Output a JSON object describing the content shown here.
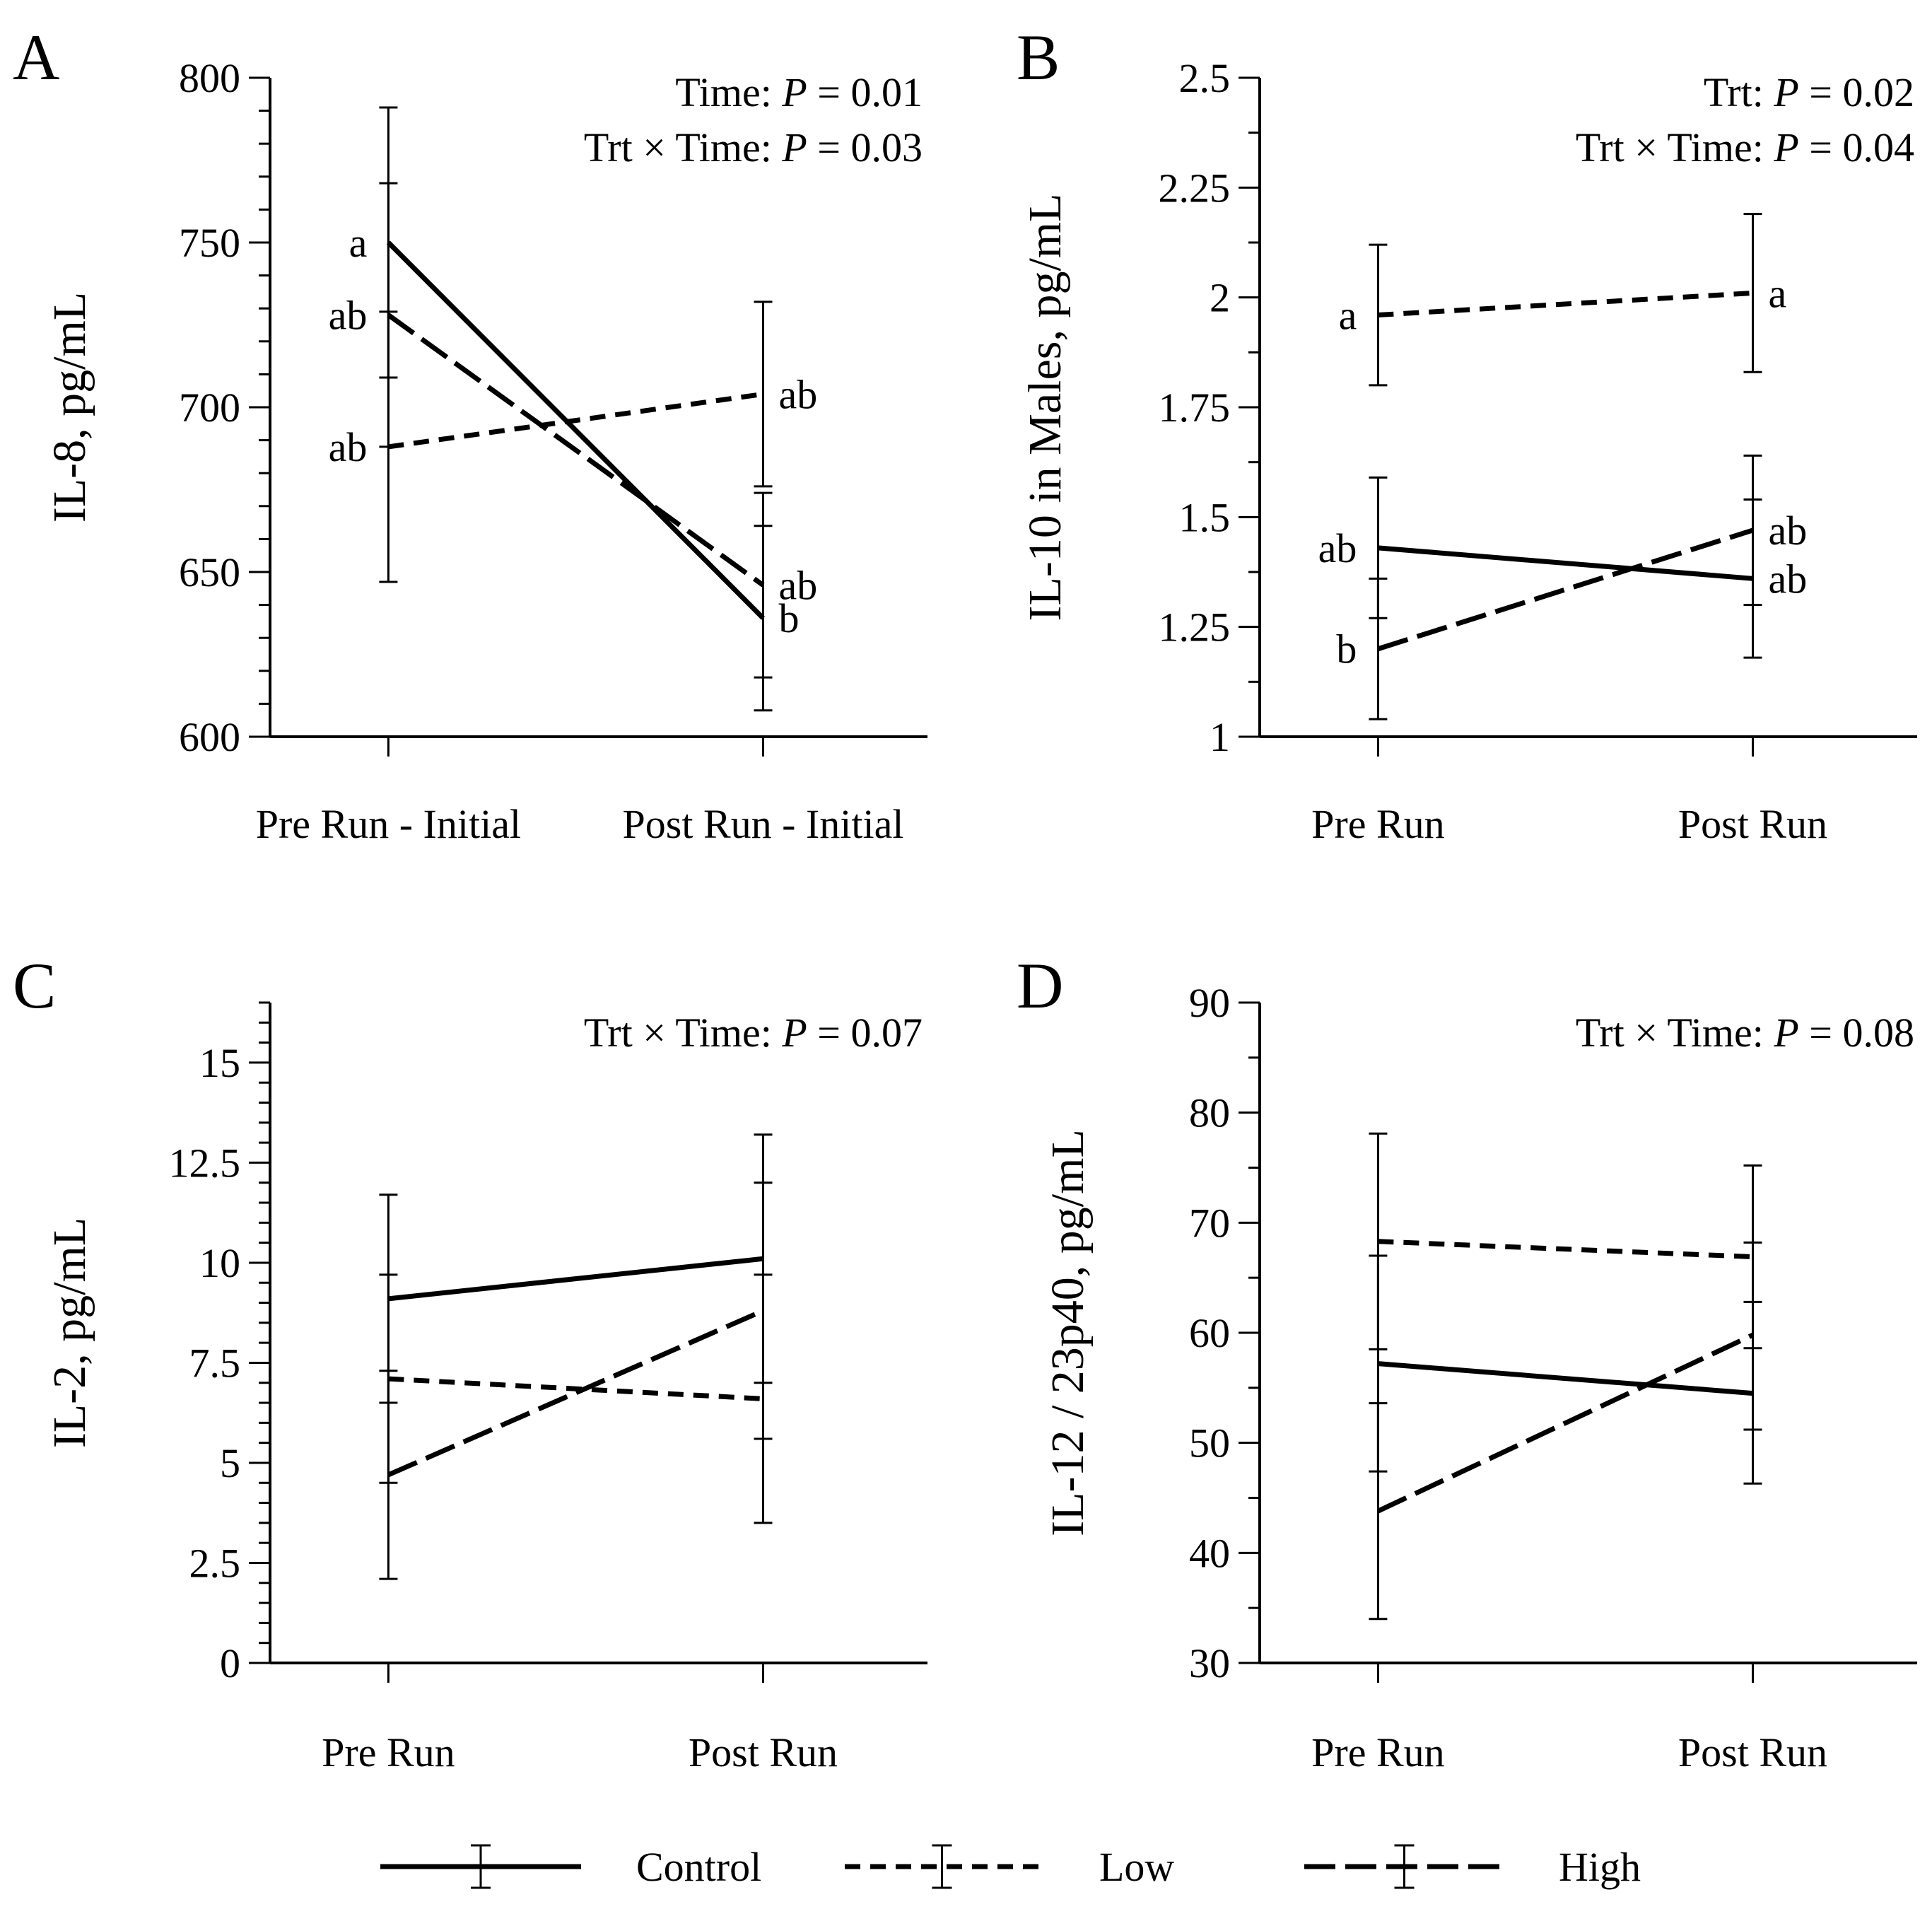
{
  "legend": {
    "items": [
      {
        "name": "Control",
        "dash": "solid"
      },
      {
        "name": "Low",
        "dash": "short"
      },
      {
        "name": "High",
        "dash": "long"
      }
    ]
  },
  "chart_data": [
    {
      "panel": "A",
      "type": "line",
      "ylabel": "IL-8, pg/mL",
      "categories": [
        "Pre Run - Initial",
        "Post Run - Initial"
      ],
      "ylim": [
        600,
        800
      ],
      "yticks": [
        600,
        650,
        700,
        750,
        800
      ],
      "annotations": [
        {
          "label": "Time: ",
          "italic": "P",
          "value": " = 0.01"
        },
        {
          "label": "Trt × Time: ",
          "italic": "P",
          "value": " = 0.03"
        }
      ],
      "series": [
        {
          "name": "Control",
          "values": [
            750,
            636
          ],
          "errors": [
            [
              709,
              791
            ],
            [
              608,
              664
            ]
          ],
          "letters": [
            "a",
            "b"
          ]
        },
        {
          "name": "Low",
          "values": [
            688,
            704
          ],
          "errors": [
            [
              647,
              729
            ],
            [
              676,
              732
            ]
          ],
          "letters": [
            "ab",
            "ab"
          ]
        },
        {
          "name": "High",
          "values": [
            728,
            646
          ],
          "errors": [
            [
              688,
              768
            ],
            [
              618,
              674
            ]
          ],
          "letters": [
            "ab",
            "ab"
          ]
        }
      ]
    },
    {
      "panel": "B",
      "type": "line",
      "ylabel": "IL-10 in Males, pg/mL",
      "categories": [
        "Pre Run",
        "Post Run"
      ],
      "ylim": [
        1,
        2.5
      ],
      "yticks": [
        1,
        1.25,
        1.5,
        1.75,
        2,
        2.25,
        2.5
      ],
      "annotations": [
        {
          "label": "Trt: ",
          "italic": "P",
          "value": " = 0.02"
        },
        {
          "label": "Trt × Time: ",
          "italic": "P",
          "value": " = 0.04"
        }
      ],
      "series": [
        {
          "name": "Control",
          "values": [
            1.43,
            1.36
          ],
          "errors": [
            [
              1.27,
              1.59
            ],
            [
              1.18,
              1.54
            ]
          ],
          "letters": [
            "ab",
            "ab"
          ]
        },
        {
          "name": "Low",
          "values": [
            1.96,
            2.01
          ],
          "errors": [
            [
              1.8,
              2.12
            ],
            [
              1.83,
              2.19
            ]
          ],
          "letters": [
            "a",
            "a"
          ]
        },
        {
          "name": "High",
          "values": [
            1.2,
            1.47
          ],
          "errors": [
            [
              1.04,
              1.36
            ],
            [
              1.3,
              1.64
            ]
          ],
          "letters": [
            "b",
            "ab"
          ]
        }
      ]
    },
    {
      "panel": "C",
      "type": "line",
      "ylabel": "IL-2, pg/mL",
      "categories": [
        "Pre Run",
        "Post Run"
      ],
      "ylim": [
        0,
        16.5
      ],
      "yticks": [
        0,
        2.5,
        5,
        7.5,
        10,
        12.5,
        15
      ],
      "annotations": [
        {
          "label": "Trt × Time: ",
          "italic": "P",
          "value": " = 0.07"
        }
      ],
      "series": [
        {
          "name": "Control",
          "values": [
            9.1,
            10.1
          ],
          "errors": [
            [
              6.5,
              11.7
            ],
            [
              7,
              13.2
            ]
          ],
          "letters": [
            "",
            ""
          ]
        },
        {
          "name": "Low",
          "values": [
            7.1,
            6.6
          ],
          "errors": [
            [
              4.5,
              9.7
            ],
            [
              3.5,
              9.7
            ]
          ],
          "letters": [
            "",
            ""
          ]
        },
        {
          "name": "High",
          "values": [
            4.7,
            8.8
          ],
          "errors": [
            [
              2.1,
              7.3
            ],
            [
              5.6,
              12
            ]
          ],
          "letters": [
            "",
            ""
          ]
        }
      ]
    },
    {
      "panel": "D",
      "type": "line",
      "ylabel": "IL-12 / 23p40, pg/mL",
      "categories": [
        "Pre Run",
        "Post Run"
      ],
      "ylim": [
        30,
        90
      ],
      "yticks": [
        30,
        40,
        50,
        60,
        70,
        80,
        90
      ],
      "annotations": [
        {
          "label": "Trt × Time: ",
          "italic": "P",
          "value": " = 0.08"
        }
      ],
      "series": [
        {
          "name": "Control",
          "values": [
            57.2,
            54.5
          ],
          "errors": [
            [
              47.4,
              67
            ],
            [
              46.3,
              62.8
            ]
          ],
          "letters": [
            "",
            ""
          ]
        },
        {
          "name": "Low",
          "values": [
            68.3,
            66.9
          ],
          "errors": [
            [
              58.5,
              78.1
            ],
            [
              58.6,
              75.2
            ]
          ],
          "letters": [
            "",
            ""
          ]
        },
        {
          "name": "High",
          "values": [
            43.8,
            59.8
          ],
          "errors": [
            [
              34,
              53.6
            ],
            [
              51.2,
              68.2
            ]
          ],
          "letters": [
            "",
            ""
          ]
        }
      ]
    }
  ]
}
